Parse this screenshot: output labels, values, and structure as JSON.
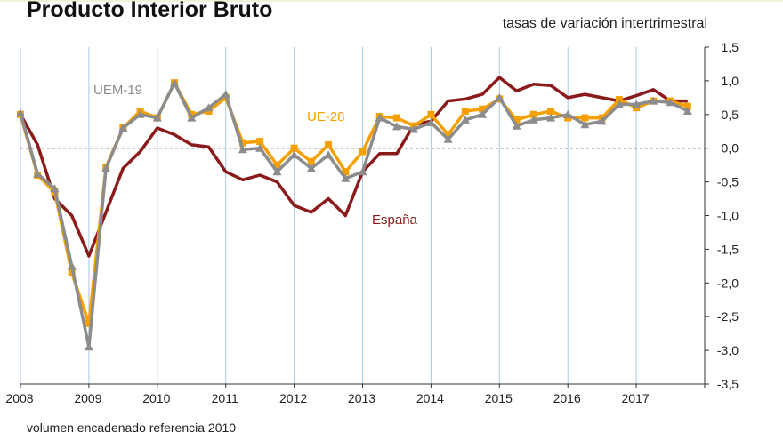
{
  "title": "Producto Interior Bruto",
  "subtitle": "tasas de variación intertrimestral",
  "footnote": "volumen encadenado referencia 2010",
  "chart_data": {
    "type": "line",
    "title": "Producto Interior Bruto",
    "ylabel": "tasas de variación intertrimestral",
    "xlabel": "",
    "ylim": [
      -3.5,
      1.5
    ],
    "yticks": [
      "1,5",
      "1,0",
      "0,5",
      "0,0",
      "-0,5",
      "-1,0",
      "-1,5",
      "-2,0",
      "-2,5",
      "-3,0",
      "-3,5"
    ],
    "ytick_values": [
      1.5,
      1.0,
      0.5,
      0.0,
      -0.5,
      -1.0,
      -1.5,
      -2.0,
      -2.5,
      -3.0,
      -3.5
    ],
    "x_years": [
      "2008",
      "2009",
      "2010",
      "2011",
      "2012",
      "2013",
      "2014",
      "2015",
      "2016",
      "2017"
    ],
    "x_start": 2008,
    "x_end": 2018,
    "zero_line": "dashed",
    "grid": "vertical year lines",
    "series": [
      {
        "name": "España",
        "label": "España",
        "color": "#8b1a1a",
        "marker": "none",
        "x": [
          2008.0,
          2008.25,
          2008.5,
          2008.75,
          2009.0,
          2009.25,
          2009.5,
          2009.75,
          2010.0,
          2010.25,
          2010.5,
          2010.75,
          2011.0,
          2011.25,
          2011.5,
          2011.75,
          2012.0,
          2012.25,
          2012.5,
          2012.75,
          2013.0,
          2013.25,
          2013.5,
          2013.75,
          2014.0,
          2014.25,
          2014.5,
          2014.75,
          2015.0,
          2015.25,
          2015.5,
          2015.75,
          2016.0,
          2016.25,
          2016.5,
          2016.75,
          2017.0,
          2017.25,
          2017.5,
          2017.75
        ],
        "values": [
          0.5,
          0.05,
          -0.75,
          -1.0,
          -1.6,
          -0.95,
          -0.3,
          -0.05,
          0.3,
          0.2,
          0.05,
          0.02,
          -0.35,
          -0.47,
          -0.4,
          -0.5,
          -0.85,
          -0.95,
          -0.75,
          -1.0,
          -0.35,
          -0.08,
          -0.08,
          0.35,
          0.4,
          0.7,
          0.73,
          0.8,
          1.05,
          0.85,
          0.95,
          0.93,
          0.75,
          0.8,
          0.75,
          0.7,
          0.78,
          0.87,
          0.7,
          0.7
        ]
      },
      {
        "name": "UE-28",
        "label": "UE-28",
        "color": "#f5a000",
        "marker": "square",
        "x": [
          2008.0,
          2008.25,
          2008.5,
          2008.75,
          2009.0,
          2009.25,
          2009.5,
          2009.75,
          2010.0,
          2010.25,
          2010.5,
          2010.75,
          2011.0,
          2011.25,
          2011.5,
          2011.75,
          2012.0,
          2012.25,
          2012.5,
          2012.75,
          2013.0,
          2013.25,
          2013.5,
          2013.75,
          2014.0,
          2014.25,
          2014.5,
          2014.75,
          2015.0,
          2015.25,
          2015.5,
          2015.75,
          2016.0,
          2016.25,
          2016.5,
          2016.75,
          2017.0,
          2017.25,
          2017.5,
          2017.75
        ],
        "values": [
          0.5,
          -0.4,
          -0.65,
          -1.85,
          -2.6,
          -0.28,
          0.3,
          0.55,
          0.45,
          0.97,
          0.5,
          0.55,
          0.75,
          0.08,
          0.1,
          -0.25,
          0.0,
          -0.2,
          0.05,
          -0.35,
          -0.05,
          0.47,
          0.45,
          0.33,
          0.5,
          0.2,
          0.55,
          0.58,
          0.73,
          0.42,
          0.5,
          0.55,
          0.45,
          0.45,
          0.45,
          0.72,
          0.6,
          0.7,
          0.7,
          0.62
        ]
      },
      {
        "name": "UEM-19",
        "label": "UEM-19",
        "color": "#8c8c8c",
        "marker": "triangle",
        "x": [
          2008.0,
          2008.25,
          2008.5,
          2008.75,
          2009.0,
          2009.25,
          2009.5,
          2009.75,
          2010.0,
          2010.25,
          2010.5,
          2010.75,
          2011.0,
          2011.25,
          2011.5,
          2011.75,
          2012.0,
          2012.25,
          2012.5,
          2012.75,
          2013.0,
          2013.25,
          2013.5,
          2013.75,
          2014.0,
          2014.25,
          2014.5,
          2014.75,
          2015.0,
          2015.25,
          2015.5,
          2015.75,
          2016.0,
          2016.25,
          2016.5,
          2016.75,
          2017.0,
          2017.25,
          2017.5,
          2017.75
        ],
        "values": [
          0.52,
          -0.38,
          -0.6,
          -1.75,
          -2.95,
          -0.3,
          0.3,
          0.5,
          0.45,
          0.97,
          0.45,
          0.6,
          0.8,
          -0.02,
          0.0,
          -0.35,
          -0.1,
          -0.3,
          -0.1,
          -0.45,
          -0.35,
          0.45,
          0.32,
          0.28,
          0.38,
          0.13,
          0.42,
          0.5,
          0.75,
          0.33,
          0.42,
          0.45,
          0.5,
          0.35,
          0.4,
          0.65,
          0.65,
          0.7,
          0.68,
          0.55
        ]
      }
    ]
  }
}
